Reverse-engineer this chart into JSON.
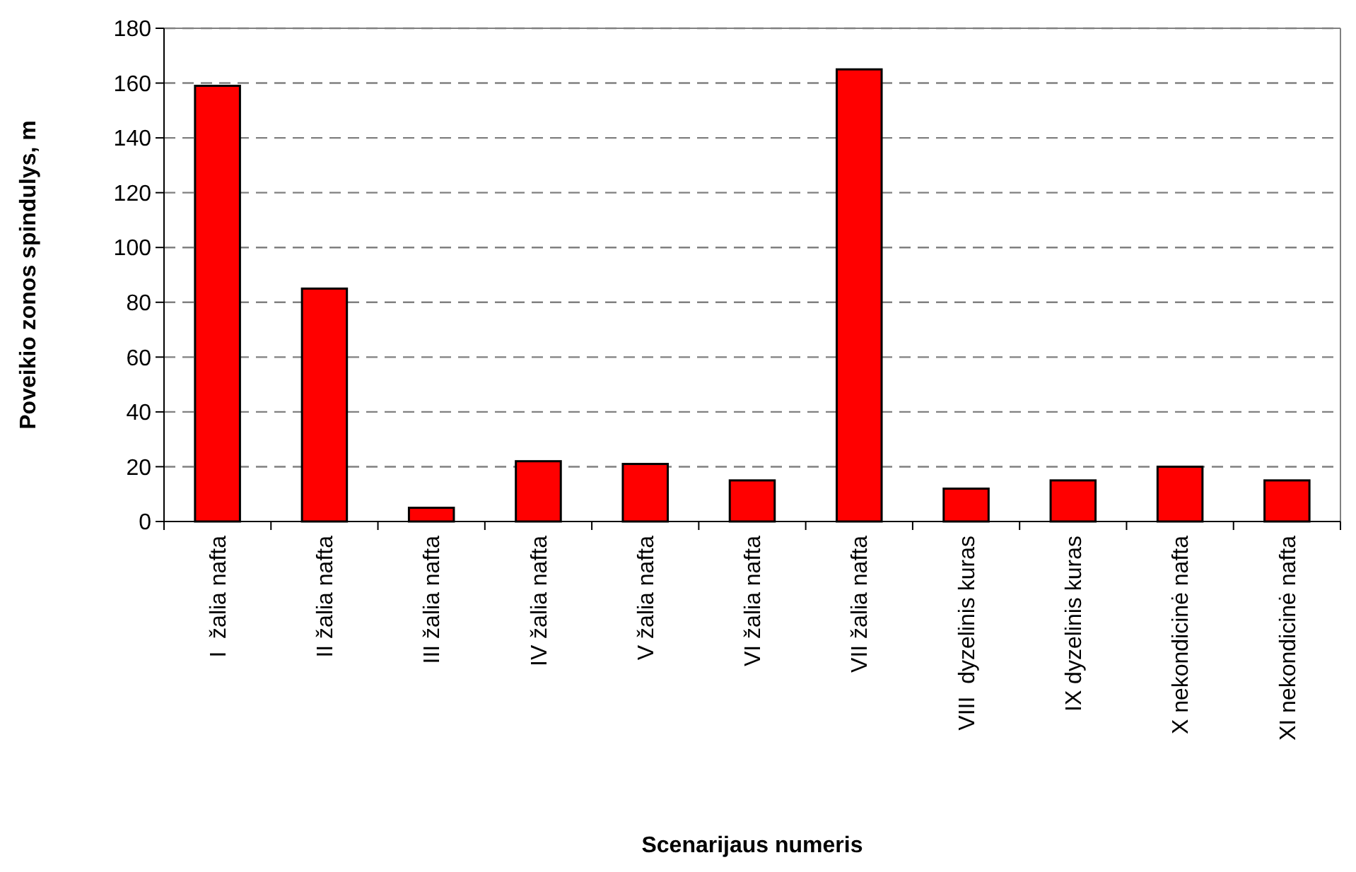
{
  "chart_data": {
    "type": "bar",
    "xlabel": "Scenarijaus numeris",
    "ylabel": "Poveikio zonos spindulys, m",
    "categories": [
      "I  žalia nafta",
      "II žalia nafta",
      "III žalia nafta",
      "IV žalia nafta",
      "V žalia nafta",
      "VI žalia nafta",
      "VII žalia nafta",
      "VIII  dyzelinis kuras",
      "IX dyzelinis kuras",
      "X nekondicinė nafta",
      "XI nekondicinė nafta"
    ],
    "values": [
      159,
      85,
      5,
      22,
      21,
      15,
      165,
      12,
      15,
      20,
      15
    ],
    "color": "#ff0000",
    "ylim": [
      0,
      180
    ],
    "yticks": [
      0,
      20,
      40,
      60,
      80,
      100,
      120,
      140,
      160,
      180
    ],
    "grid": "y"
  }
}
